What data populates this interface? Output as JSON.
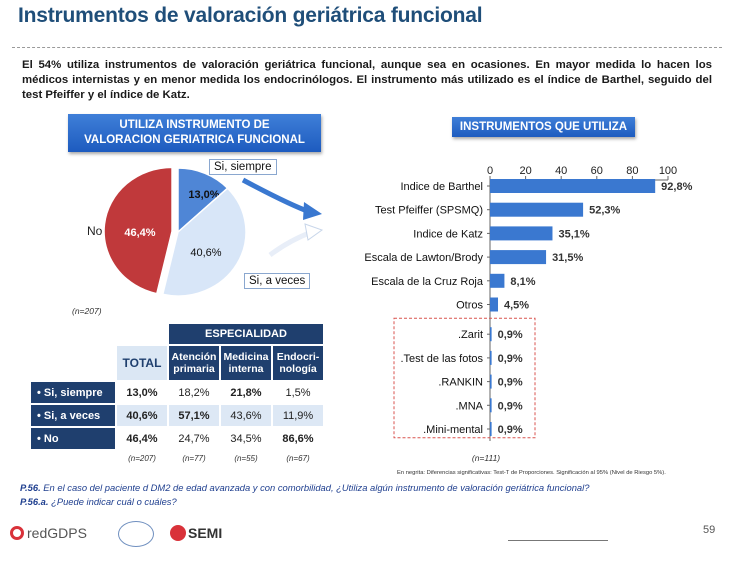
{
  "title": "Instrumentos de valoración geriátrica funcional",
  "intro": "El 54% utiliza instrumentos de valoración geriátrica funcional, aunque sea en ocasiones. En mayor medida lo hacen los médicos internistas y en menor medida los endocrinólogos. El instrumento más utilizado es el índice de Barthel, seguido del test Pfeiffer y el índice de Katz.",
  "left_banner": {
    "line1": "UTILIZA INSTRUMENTO DE",
    "line2": "VALORACION GERIATRICA FUNCIONAL"
  },
  "right_banner": "INSTRUMENTOS QUE UTILIZA",
  "pie": {
    "n_label": "(n=207)",
    "callout_siempre": "Si, siempre",
    "callout_veces": "Si, a veces",
    "label_no": "No"
  },
  "chart_data": [
    {
      "type": "pie",
      "title": "UTILIZA INSTRUMENTO DE VALORACION GERIATRICA FUNCIONAL",
      "slices": [
        {
          "name": "Si, siempre",
          "value": 13.0,
          "label": "13,0%",
          "color": "#4f86d6"
        },
        {
          "name": "Si, a veces",
          "value": 40.6,
          "label": "40,6%",
          "color": "#d8e6f8"
        },
        {
          "name": "No",
          "value": 46.4,
          "label": "46,4%",
          "color": "#c0393b"
        }
      ]
    },
    {
      "type": "bar",
      "orientation": "horizontal",
      "title": "INSTRUMENTOS QUE UTILIZA",
      "xlim": [
        0,
        100
      ],
      "xticks": [
        "0",
        "20",
        "40",
        "60",
        "80",
        "100"
      ],
      "color": "#3a78d0",
      "categories": [
        "Indice de Barthel",
        "Test Pfeiffer (SPSMQ)",
        "Indice de Katz",
        "Escala de Lawton/Brody",
        "Escala de la Cruz Roja",
        "Otros",
        ".Zarit",
        ".Test de las fotos",
        ".RANKIN",
        ".MNA",
        ".Mini-mental"
      ],
      "values": [
        92.8,
        52.3,
        35.1,
        31.5,
        8.1,
        4.5,
        0.9,
        0.9,
        0.9,
        0.9,
        0.9
      ],
      "value_labels": [
        "92,8%",
        "52,3%",
        "35,1%",
        "31,5%",
        "8,1%",
        "4,5%",
        "0,9%",
        "0,9%",
        "0,9%",
        "0,9%",
        "0,9%"
      ],
      "n_label": "(n=111)"
    }
  ],
  "table": {
    "group_header": "ESPECIALIDAD",
    "col_total": "TOTAL",
    "cols": [
      {
        "l1": "Atención",
        "l2": "primaria"
      },
      {
        "l1": "Medicina",
        "l2": "interna"
      },
      {
        "l1": "Endocri-",
        "l2": "nología"
      }
    ],
    "rows": [
      {
        "label": "•  Si, siempre",
        "values": [
          "13,0%",
          "18,2%",
          "21,8%",
          "1,5%"
        ],
        "bold": [
          true,
          false,
          true,
          false
        ]
      },
      {
        "label": "•  Si, a veces",
        "values": [
          "40,6%",
          "57,1%",
          "43,6%",
          "11,9%"
        ],
        "bold": [
          true,
          true,
          false,
          false
        ]
      },
      {
        "label": "•  No",
        "values": [
          "46,4%",
          "24,7%",
          "34,5%",
          "86,6%"
        ],
        "bold": [
          true,
          false,
          false,
          true
        ]
      }
    ],
    "n_values": [
      "(n=207)",
      "(n=77)",
      "(n=55)",
      "(n=67)"
    ]
  },
  "significance_note": "En negrita: Diferencias significativas: Test-T de Proporciones. Significación al 95% (Nivel de Riesgo 5%).",
  "footnote1": {
    "code": "P.56.",
    "text": " En el caso del paciente d DM2 de edad avanzada y con comorbilidad, ¿Utiliza algún instrumento de valoración geriátrica funcional?"
  },
  "footnote2": {
    "code": "P.56.a.",
    "text": " ¿Puede indicar cuál o cuáles?"
  },
  "logos": {
    "redgdps": "redGDPS",
    "semi": "SEMI"
  },
  "page_number": "59"
}
